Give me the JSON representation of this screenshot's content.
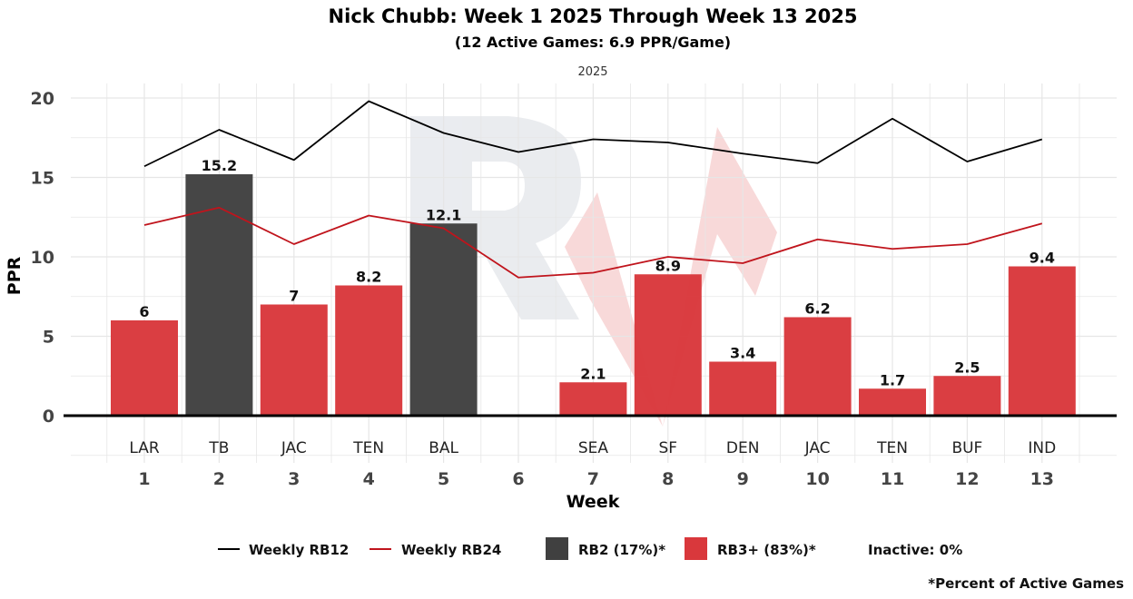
{
  "chart_data": {
    "type": "bar",
    "title": "Nick Chubb: Week 1 2025 Through Week 13 2025",
    "subtitle": "(12 Active Games: 6.9 PPR/Game)",
    "facet_label": "2025",
    "xlabel": "Week",
    "ylabel": "PPR",
    "ylim": [
      0,
      20
    ],
    "yticks": [
      0,
      5,
      10,
      15,
      20
    ],
    "weeks": [
      1,
      2,
      3,
      4,
      5,
      6,
      7,
      8,
      9,
      10,
      11,
      12,
      13
    ],
    "opponents": [
      "LAR",
      "TB",
      "JAC",
      "TEN",
      "BAL",
      "",
      "SEA",
      "SF",
      "DEN",
      "JAC",
      "TEN",
      "BUF",
      "IND"
    ],
    "values": [
      6,
      15.2,
      7,
      8.2,
      12.1,
      null,
      2.1,
      8.9,
      3.4,
      6.2,
      1.7,
      2.5,
      9.4
    ],
    "value_labels": [
      "6",
      "15.2",
      "7",
      "8.2",
      "12.1",
      "",
      "2.1",
      "8.9",
      "3.4",
      "6.2",
      "1.7",
      "2.5",
      "9.4"
    ],
    "tiers": [
      "RB3+",
      "RB2",
      "RB3+",
      "RB3+",
      "RB2",
      "Inactive",
      "RB3+",
      "RB3+",
      "RB3+",
      "RB3+",
      "RB3+",
      "RB3+",
      "RB3+"
    ],
    "series": [
      {
        "name": "Weekly RB12",
        "color": "#000000",
        "values": [
          15.7,
          18.0,
          16.1,
          19.8,
          17.8,
          16.6,
          17.4,
          17.2,
          16.5,
          15.9,
          18.7,
          16.0,
          17.4
        ]
      },
      {
        "name": "Weekly RB24",
        "color": "#c0141c",
        "values": [
          12.0,
          13.1,
          10.8,
          12.6,
          11.8,
          8.7,
          9.0,
          10.0,
          9.6,
          11.1,
          10.5,
          10.8,
          12.1
        ]
      }
    ],
    "colors": {
      "RB2": "#404040",
      "RB3+": "#d9383c",
      "grid": "#e6e6e6",
      "watermark_gray": "#e8eaee",
      "watermark_red": "#f4b8b8"
    },
    "legend": {
      "rb12": "Weekly RB12",
      "rb24": "Weekly RB24",
      "rb2": "RB2 (17%)*",
      "rb3": "RB3+ (83%)*",
      "inactive": "Inactive: 0%"
    },
    "footnote": "*Percent of Active Games"
  }
}
